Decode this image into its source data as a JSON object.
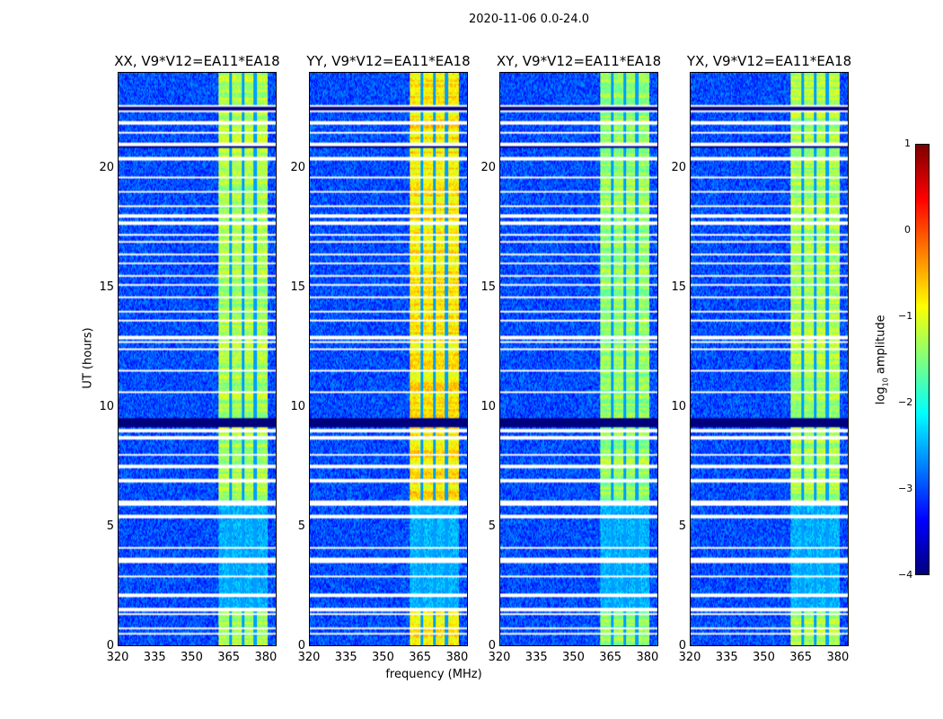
{
  "chart_data": {
    "type": "heatmap",
    "title": "2020-11-06 0.0-24.0",
    "panels": [
      {
        "title": "XX, V9*V12=EA11*EA18",
        "band_level": -1.3
      },
      {
        "title": "YY, V9*V12=EA11*EA18",
        "band_level": -0.8
      },
      {
        "title": "XY, V9*V12=EA11*EA18",
        "band_level": -1.4
      },
      {
        "title": "YX, V9*V12=EA11*EA18",
        "band_level": -1.3
      }
    ],
    "xlabel": "frequency (MHz)",
    "ylabel": "UT (hours)",
    "xlim": [
      320,
      384.4
    ],
    "ylim": [
      0,
      24
    ],
    "xticks": [
      "320",
      "335",
      "350",
      "365",
      "380"
    ],
    "xtick_values": [
      320,
      335,
      350,
      365,
      380
    ],
    "yticks": [
      "0",
      "5",
      "10",
      "15",
      "20"
    ],
    "ytick_values": [
      0,
      5,
      10,
      15,
      20
    ],
    "background_level": -3.0,
    "bright_band_mhz": [
      361,
      381
    ],
    "channel_gaps_mhz": [
      366,
      371,
      376
    ],
    "dim_period_hours": [
      1.6,
      6.0
    ],
    "flagged_hours": [
      0.5,
      0.7,
      1.3,
      1.5,
      2.1,
      2.9,
      3.5,
      3.6,
      4.1,
      5.4,
      5.9,
      6.0,
      6.9,
      7.5,
      8.0,
      8.7,
      9.0,
      10.6,
      11.5,
      12.4,
      12.7,
      12.9,
      13.6,
      14.0,
      14.6,
      15.1,
      15.5,
      16.0,
      16.4,
      16.9,
      17.2,
      17.7,
      18.0,
      18.4,
      19.0,
      19.6,
      20.4,
      21.0,
      21.5,
      21.9,
      22.4,
      22.6
    ],
    "dark_hours": [
      9.2,
      9.3,
      9.45,
      12.85,
      20.9,
      22.5
    ],
    "colorbar": {
      "label": "log10 amplitude",
      "label_base": "log",
      "label_sub": "10",
      "label_rest": " amplitude",
      "range": [
        -4,
        1
      ],
      "ticks": [
        "1",
        "0",
        "−1",
        "−2",
        "−3",
        "−4"
      ],
      "tick_values": [
        1,
        0,
        -1,
        -2,
        -3,
        -4
      ],
      "colormap": "jet"
    }
  }
}
